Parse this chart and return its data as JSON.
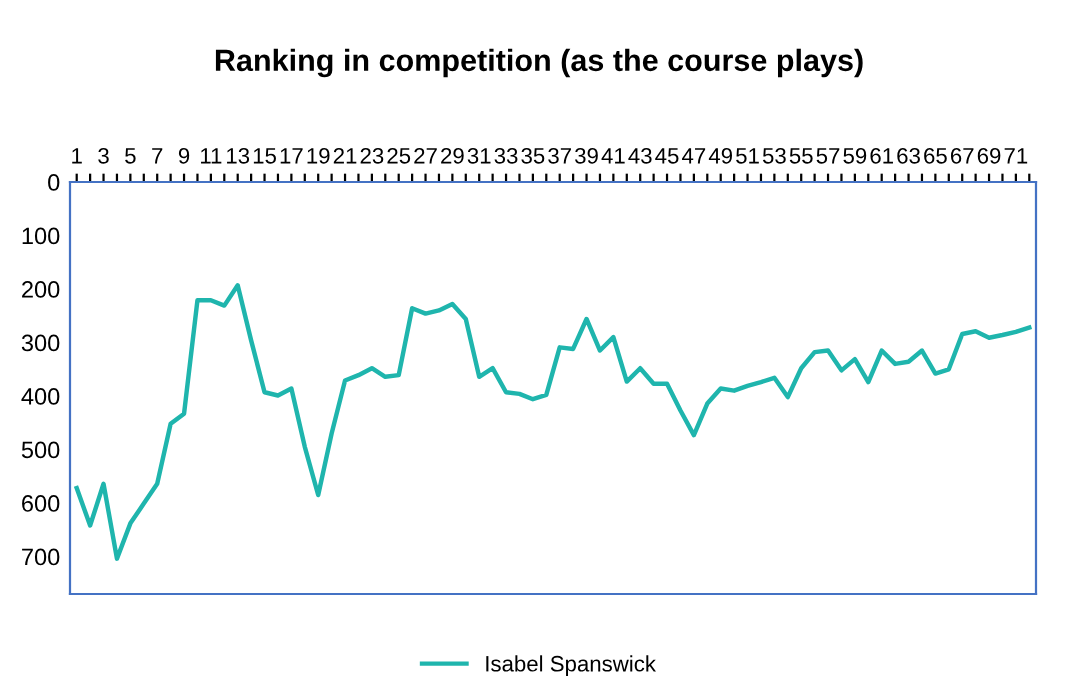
{
  "chart_data": {
    "type": "line",
    "title": "Ranking in competition (as the course plays)",
    "categories": [
      "1",
      null,
      "3",
      null,
      "5",
      null,
      "7",
      null,
      "9",
      null,
      "11",
      null,
      "13",
      null,
      "15",
      null,
      "17",
      null,
      "19",
      null,
      "21",
      null,
      "23",
      null,
      "25",
      null,
      "27",
      null,
      "29",
      null,
      "31",
      null,
      "33",
      null,
      "35",
      null,
      "37",
      null,
      "39",
      null,
      "41",
      null,
      "43",
      null,
      "45",
      null,
      "47",
      null,
      "49",
      null,
      "51",
      null,
      "53",
      null,
      "55",
      null,
      "57",
      null,
      "59",
      null,
      "61",
      null,
      "63",
      null,
      "65",
      null,
      "67",
      null,
      "69",
      null,
      "71",
      null
    ],
    "series": [
      {
        "name": "Isabel Spanswick",
        "color": "#1fb5ad",
        "values": [
          572,
          642,
          564,
          704,
          638,
          601,
          564,
          452,
          433,
          221,
          221,
          231,
          193,
          296,
          393,
          399,
          386,
          495,
          585,
          470,
          371,
          361,
          348,
          364,
          361,
          236,
          246,
          240,
          228,
          256,
          364,
          348,
          393,
          396,
          406,
          398,
          309,
          312,
          256,
          315,
          290,
          373,
          348,
          377,
          377,
          427,
          473,
          414,
          386,
          390,
          381,
          374,
          366,
          402,
          348,
          318,
          315,
          352,
          331,
          374,
          315,
          340,
          336,
          315,
          358,
          350,
          284,
          279,
          291,
          286,
          280,
          272
        ]
      }
    ],
    "ylim": [
      770,
      0
    ],
    "yticks": [
      0,
      100,
      200,
      300,
      400,
      500,
      600,
      700
    ],
    "grid": false,
    "legend": "bottom",
    "marker": "none",
    "line_style": "solid"
  }
}
